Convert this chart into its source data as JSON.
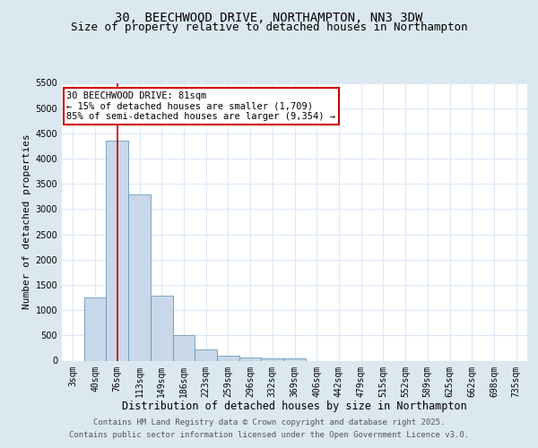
{
  "title1": "30, BEECHWOOD DRIVE, NORTHAMPTON, NN3 3DW",
  "title2": "Size of property relative to detached houses in Northampton",
  "xlabel": "Distribution of detached houses by size in Northampton",
  "ylabel": "Number of detached properties",
  "categories": [
    "3sqm",
    "40sqm",
    "76sqm",
    "113sqm",
    "149sqm",
    "186sqm",
    "223sqm",
    "259sqm",
    "296sqm",
    "332sqm",
    "369sqm",
    "406sqm",
    "442sqm",
    "479sqm",
    "515sqm",
    "552sqm",
    "589sqm",
    "625sqm",
    "662sqm",
    "698sqm",
    "735sqm"
  ],
  "values": [
    0,
    1250,
    4350,
    3300,
    1280,
    500,
    230,
    90,
    60,
    40,
    40,
    0,
    0,
    0,
    0,
    0,
    0,
    0,
    0,
    0,
    0
  ],
  "bar_color": "#c8d8e8",
  "bar_edge_color": "#6699bb",
  "vline_x_index": 2,
  "vline_color": "#cc0000",
  "annotation_text": "30 BEECHWOOD DRIVE: 81sqm\n← 15% of detached houses are smaller (1,709)\n85% of semi-detached houses are larger (9,354) →",
  "annotation_box_color": "#cc0000",
  "ylim": [
    0,
    5500
  ],
  "yticks": [
    0,
    500,
    1000,
    1500,
    2000,
    2500,
    3000,
    3500,
    4000,
    4500,
    5000,
    5500
  ],
  "figure_bg": "#dce8f0",
  "plot_bg": "#ffffff",
  "grid_color": "#dce8f8",
  "footer_line1": "Contains HM Land Registry data © Crown copyright and database right 2025.",
  "footer_line2": "Contains public sector information licensed under the Open Government Licence v3.0.",
  "title1_fontsize": 10,
  "title2_fontsize": 9,
  "xlabel_fontsize": 8.5,
  "ylabel_fontsize": 8,
  "tick_fontsize": 7,
  "footer_fontsize": 6.5,
  "annotation_fontsize": 7.5
}
